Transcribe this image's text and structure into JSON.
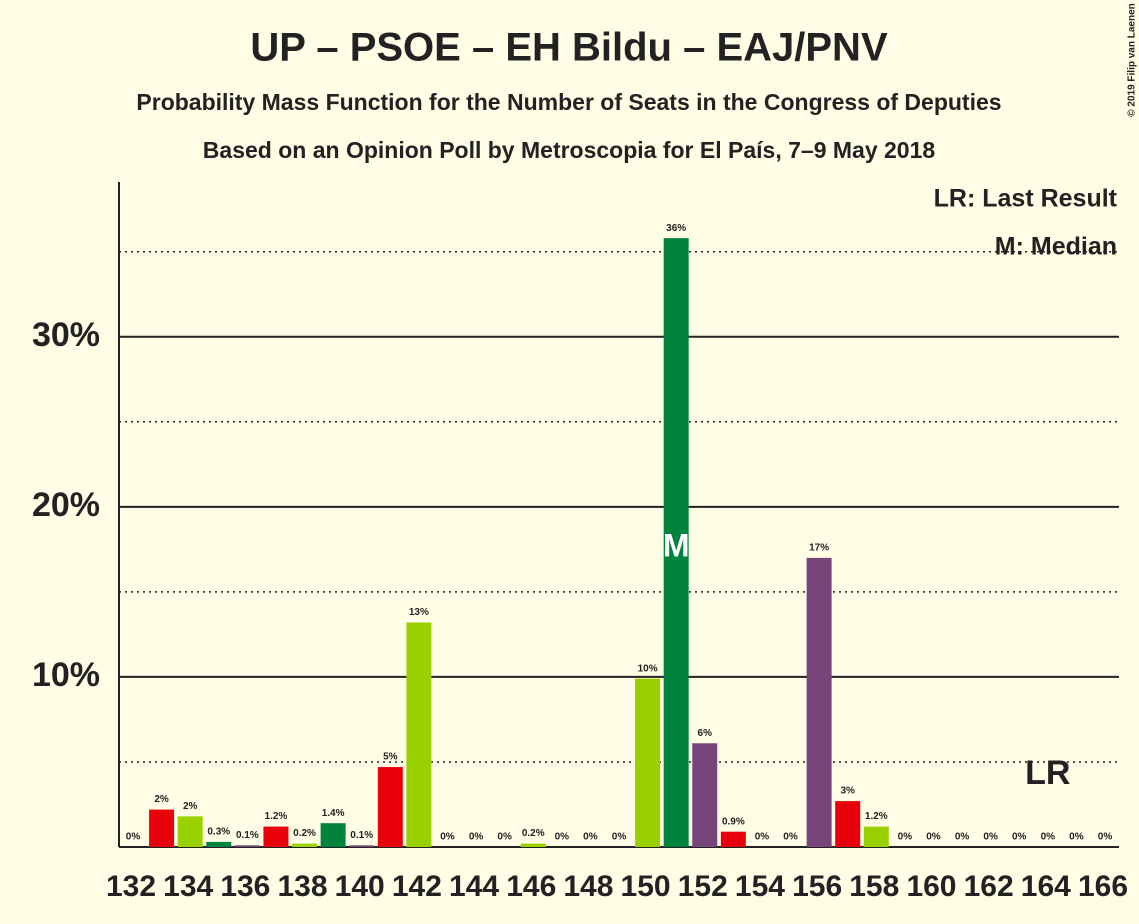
{
  "chart_data": {
    "type": "bar",
    "title": "UP – PSOE – EH Bildu – EAJ/PNV",
    "subtitle": "Probability Mass Function for the Number of Seats in the Congress of Deputies",
    "subtitle2": "Based on an Opinion Poll by Metroscopia for El País, 7–9 May 2018",
    "copyright": "© 2019 Filip van Laenen",
    "x": [
      132,
      133,
      134,
      135,
      136,
      137,
      138,
      139,
      140,
      141,
      142,
      143,
      144,
      145,
      146,
      147,
      148,
      149,
      150,
      151,
      152,
      153,
      154,
      155,
      156,
      157,
      158,
      159,
      160,
      161,
      162,
      163,
      164,
      165,
      166
    ],
    "values": [
      0,
      2.2,
      1.8,
      0.3,
      0.1,
      1.2,
      0.2,
      1.4,
      0.1,
      4.7,
      13.2,
      0,
      0,
      0,
      0.2,
      0,
      0,
      0,
      9.9,
      35.8,
      6.1,
      0.9,
      0,
      0,
      17,
      2.7,
      1.2,
      0,
      0,
      0,
      0,
      0,
      0,
      0,
      0
    ],
    "value_labels": [
      "0%",
      "2%",
      "2%",
      "0.3%",
      "0.1%",
      "1.2%",
      "0.2%",
      "1.4%",
      "0.1%",
      "5%",
      "13%",
      "0%",
      "0%",
      "0%",
      "0.2%",
      "0%",
      "0%",
      "0%",
      "10%",
      "36%",
      "6%",
      "0.9%",
      "0%",
      "0%",
      "17%",
      "3%",
      "1.2%",
      "0%",
      "0%",
      "0%",
      "0%",
      "0%",
      "0%",
      "0%",
      "0%"
    ],
    "colors": [
      "#77457a",
      "#e8000b",
      "#99d100",
      "#00843d",
      "#77457a",
      "#e8000b",
      "#99d100",
      "#00843d",
      "#77457a",
      "#e8000b",
      "#99d100",
      "#00843d",
      "#77457a",
      "#e8000b",
      "#99d100",
      "#00843d",
      "#77457a",
      "#e8000b",
      "#99d100",
      "#00843d",
      "#77457a",
      "#e8000b",
      "#99d100",
      "#00843d",
      "#77457a",
      "#e8000b",
      "#99d100",
      "#00843d",
      "#77457a",
      "#e8000b",
      "#99d100",
      "#00843d",
      "#77457a",
      "#e8000b",
      "#99d100"
    ],
    "xlim": [
      132,
      166
    ],
    "xticks": [
      132,
      134,
      136,
      138,
      140,
      142,
      144,
      146,
      148,
      150,
      152,
      154,
      156,
      158,
      160,
      162,
      164,
      166
    ],
    "ylim": [
      0,
      39.1
    ],
    "yticks": [
      {
        "value": 10,
        "label": "10%"
      },
      {
        "value": 20,
        "label": "20%"
      },
      {
        "value": 30,
        "label": "30%"
      }
    ],
    "minor_yticks": [
      5,
      15,
      25,
      35
    ],
    "median": {
      "x": 151,
      "label": "M"
    },
    "last_result": {
      "x": 164,
      "label": "LR"
    },
    "legend": [
      "LR: Last Result",
      "M: Median"
    ]
  }
}
